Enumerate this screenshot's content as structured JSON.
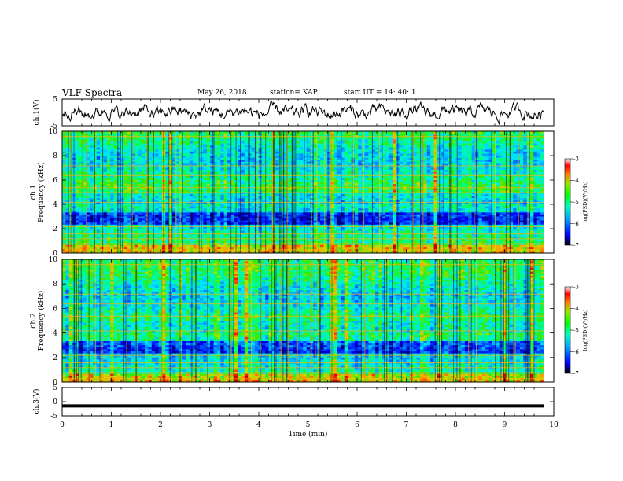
{
  "header": {
    "title": "VLF Spectra",
    "date": "May 26, 2018",
    "station": "station= KAP",
    "start": "start  UT =   14: 40: 1"
  },
  "chart_data": [
    {
      "type": "line",
      "ylabel": "ch.1(V)",
      "ylim": [
        -5,
        5
      ],
      "yticks": [
        "5",
        "-5"
      ],
      "xlim": [
        0,
        10
      ],
      "description": "noisy waveform roughly between -3 and +3 V"
    },
    {
      "type": "heatmap",
      "ylabel": "ch.1\nFrequency (kHz)",
      "ylim": [
        0,
        10
      ],
      "yticks": [
        "0",
        "2",
        "4",
        "6",
        "8",
        "10"
      ],
      "xlim": [
        0,
        10
      ],
      "data_end_min": 9.8,
      "colorbar": {
        "label": "log(PSD)(V²/Hz)",
        "range": [
          -7,
          -3
        ],
        "ticks": [
          "-3",
          "-4",
          "-5",
          "-6",
          "-7"
        ]
      }
    },
    {
      "type": "heatmap",
      "ylabel": "ch.2\nFrequency (kHz)",
      "ylim": [
        0,
        10
      ],
      "yticks": [
        "0",
        "2",
        "4",
        "6",
        "8",
        "10"
      ],
      "xlim": [
        0,
        10
      ],
      "data_end_min": 9.8,
      "colorbar": {
        "label": "log(PSD)(V²/Hz)",
        "range": [
          -7,
          -3
        ],
        "ticks": [
          "-3",
          "-4",
          "-5",
          "-6",
          "-7"
        ]
      }
    },
    {
      "type": "line",
      "ylabel": "ch.3(V)",
      "ylim": [
        -5,
        5
      ],
      "yticks": [
        "5",
        "0",
        "-5"
      ],
      "xlim": [
        0,
        10
      ],
      "x": [
        0,
        9.8
      ],
      "y": [
        -1.5,
        -1.5
      ]
    }
  ],
  "xaxis": {
    "label": "Time  (min)",
    "ticks": [
      "0",
      "1",
      "2",
      "3",
      "4",
      "5",
      "6",
      "7",
      "8",
      "9",
      "10"
    ]
  },
  "colors": {
    "colormap": [
      "#000080",
      "#0000ff",
      "#0080ff",
      "#00e0ff",
      "#00ff80",
      "#40e000",
      "#c0e000",
      "#ffa000",
      "#ff2000",
      "#c00000",
      "#ffffff"
    ],
    "line": "#000000"
  }
}
